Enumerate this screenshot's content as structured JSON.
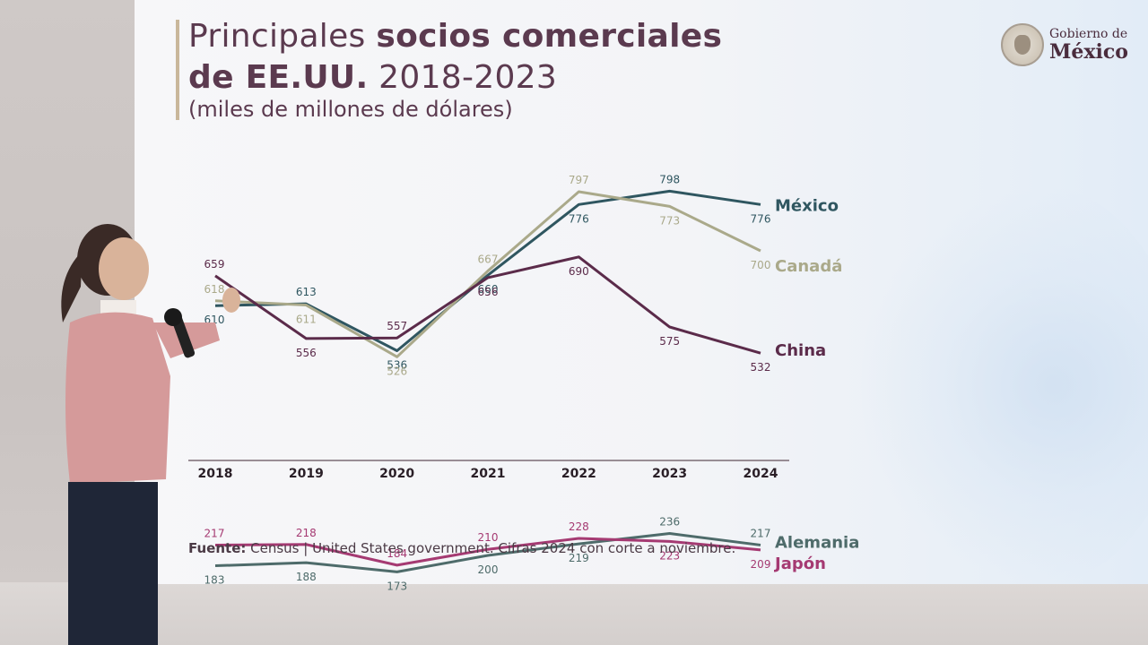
{
  "slide": {
    "title_regular_1": "Principales ",
    "title_bold_1": "socios comerciales",
    "title_bold_2": "de EE.UU.",
    "title_regular_2": " 2018-2023",
    "subtitle": "(miles de millones de dólares)",
    "logo_line1": "Gobierno de",
    "logo_line2": "México",
    "source_label": "Fuente:",
    "source_text": " Census | United States government. Cifras 2024 con corte a noviembre."
  },
  "chart_data": {
    "type": "line",
    "title": "Principales socios comerciales de EE.UU. 2018-2023",
    "ylabel": "(miles de millones de dólares)",
    "categories": [
      "2018",
      "2019",
      "2020",
      "2021",
      "2022",
      "2023",
      "2024"
    ],
    "series": [
      {
        "name": "México",
        "color": "#2f5660",
        "values": [
          610,
          613,
          536,
          660,
          776,
          798,
          776
        ],
        "labels": [
          "610",
          "613",
          "536",
          "660",
          "776",
          "798",
          "776"
        ]
      },
      {
        "name": "Canadá",
        "color": "#aaa98a",
        "values": [
          618,
          611,
          526,
          667,
          797,
          773,
          700
        ],
        "labels": [
          "618",
          "611",
          "526",
          "667",
          "797",
          "773",
          "700"
        ]
      },
      {
        "name": "China",
        "color": "#5b2b4a",
        "values": [
          659,
          556,
          557,
          656,
          690,
          575,
          532
        ],
        "labels": [
          "659",
          "556",
          "557",
          "656",
          "690",
          "575",
          "532"
        ]
      },
      {
        "name": "Alemania",
        "color": "#4e6b6a",
        "values": [
          183,
          188,
          173,
          200,
          219,
          236,
          217
        ],
        "labels": [
          "183",
          "188",
          "173",
          "200",
          "219",
          "236",
          "217"
        ]
      },
      {
        "name": "Japón",
        "color": "#a53a72",
        "values": [
          217,
          218,
          184,
          210,
          228,
          223,
          209
        ],
        "labels": [
          "217",
          "218",
          "184",
          "210",
          "228",
          "223",
          "209"
        ]
      }
    ],
    "legend_placement": "right, at line ends",
    "grid": false
  }
}
